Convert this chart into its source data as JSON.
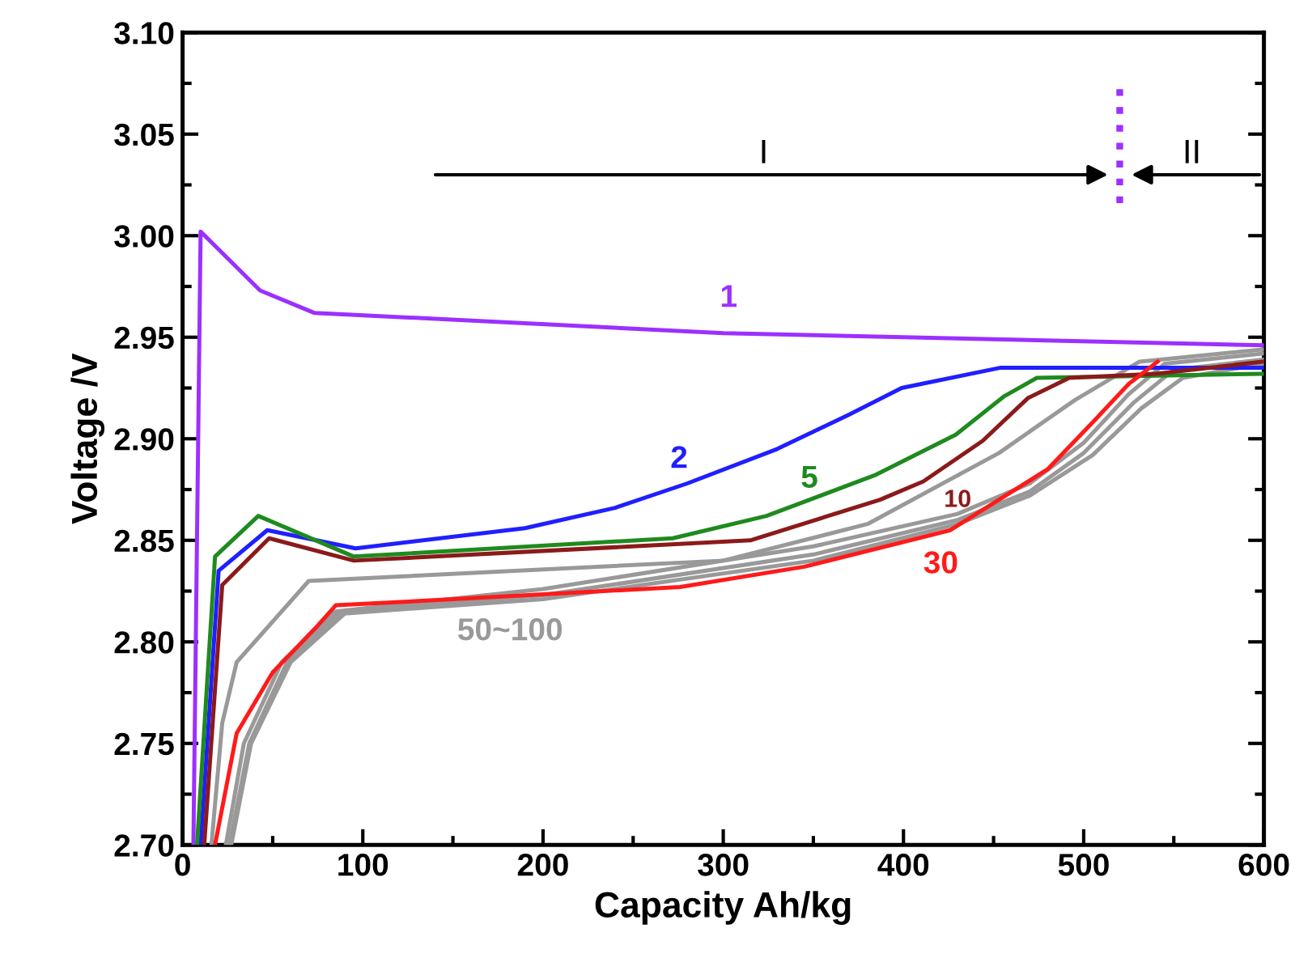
{
  "chart_data": {
    "type": "line",
    "xlabel": "Capacity Ah/kg",
    "ylabel": "Voltage /V",
    "xlim": [
      0,
      600
    ],
    "xticks": [
      0,
      100,
      200,
      300,
      400,
      500,
      600
    ],
    "ylim": [
      2.7,
      3.1
    ],
    "yticks": [
      {
        "value": 2.7,
        "label": "2.70"
      },
      {
        "value": 2.75,
        "label": "2.75"
      },
      {
        "value": 2.8,
        "label": "2.80"
      },
      {
        "value": 2.85,
        "label": "2.85"
      },
      {
        "value": 2.9,
        "label": "2.90"
      },
      {
        "value": 2.95,
        "label": "2.95"
      },
      {
        "value": 3.0,
        "label": "3.00"
      },
      {
        "value": 3.05,
        "label": "3.05"
      },
      {
        "value": 3.1,
        "label": "3.10"
      }
    ],
    "grid": false,
    "marker": "none",
    "line_style": "solid",
    "series": [
      {
        "name": "1",
        "color": "#9b30ff",
        "x": [
          6,
          10,
          43,
          73,
          300,
          600
        ],
        "values": [
          2.7,
          3.002,
          2.973,
          2.962,
          2.952,
          2.946
        ]
      },
      {
        "name": "2",
        "color": "#1f1fff",
        "x": [
          10,
          20,
          47,
          96,
          190,
          240,
          280,
          330,
          370,
          399,
          454,
          600
        ],
        "values": [
          2.7,
          2.835,
          2.855,
          2.846,
          2.856,
          2.866,
          2.878,
          2.895,
          2.912,
          2.925,
          2.935,
          2.935
        ]
      },
      {
        "name": "5",
        "color": "#1f8a1f",
        "x": [
          8,
          18,
          42,
          95,
          272,
          324,
          384,
          429,
          456,
          474,
          600
        ],
        "values": [
          2.7,
          2.842,
          2.862,
          2.842,
          2.851,
          2.862,
          2.882,
          2.902,
          2.921,
          2.93,
          2.932
        ]
      },
      {
        "name": "10",
        "color": "#8b1a1a",
        "x": [
          12,
          22,
          48,
          95,
          315,
          387,
          411,
          444,
          469,
          492,
          540,
          600
        ],
        "values": [
          2.7,
          2.828,
          2.851,
          2.84,
          2.85,
          2.87,
          2.879,
          2.899,
          2.92,
          2.93,
          2.932,
          2.938
        ]
      },
      {
        "color": "#999999",
        "x": [
          16,
          22,
          30,
          45,
          70,
          300,
          380,
          453,
          495,
          531,
          600
        ],
        "values": [
          2.7,
          2.76,
          2.79,
          2.805,
          2.83,
          2.84,
          2.858,
          2.893,
          2.919,
          2.938,
          2.944
        ]
      },
      {
        "color": "#999999",
        "x": [
          24,
          34,
          55,
          85,
          200,
          350,
          430,
          470,
          500,
          525,
          545,
          600
        ],
        "values": [
          2.7,
          2.75,
          2.79,
          2.815,
          2.826,
          2.847,
          2.863,
          2.878,
          2.898,
          2.922,
          2.937,
          2.942
        ]
      },
      {
        "color": "#999999",
        "x": [
          26,
          37,
          58,
          88,
          200,
          350,
          430,
          470,
          500,
          528,
          550,
          600
        ],
        "values": [
          2.7,
          2.75,
          2.79,
          2.815,
          2.823,
          2.843,
          2.86,
          2.874,
          2.893,
          2.918,
          2.934,
          2.939
        ]
      },
      {
        "name": "50~100",
        "color": "#999999",
        "x": [
          27,
          38,
          60,
          90,
          200,
          350,
          430,
          470,
          505,
          532,
          555,
          600
        ],
        "values": [
          2.7,
          2.75,
          2.79,
          2.814,
          2.821,
          2.84,
          2.858,
          2.872,
          2.892,
          2.915,
          2.93,
          2.937
        ]
      },
      {
        "name": "30",
        "color": "#ff1a1a",
        "x": [
          18,
          30,
          50,
          75,
          85,
          150,
          276,
          345,
          426,
          480,
          507,
          525,
          541
        ],
        "values": [
          2.7,
          2.755,
          2.785,
          2.808,
          2.818,
          2.821,
          2.827,
          2.837,
          2.855,
          2.885,
          2.91,
          2.927,
          2.938
        ]
      }
    ],
    "ref_lines": [
      {
        "axis": "x",
        "value": 520,
        "color": "#9b30ff",
        "line_style": "dotted"
      }
    ],
    "annotations": [
      "I",
      "II"
    ]
  }
}
